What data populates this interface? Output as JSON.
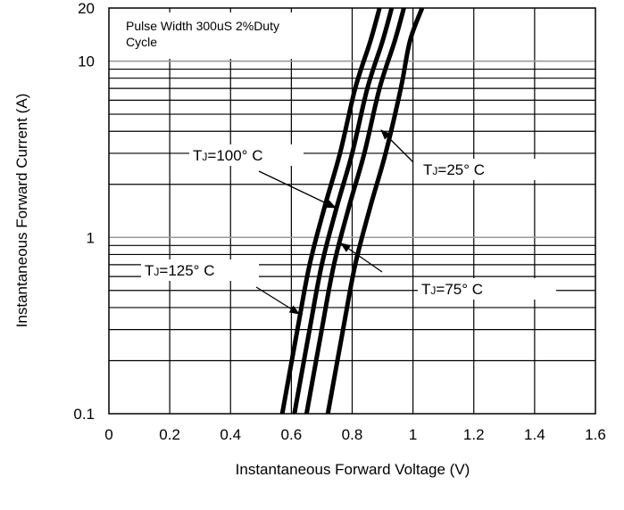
{
  "chart_data": {
    "type": "line",
    "title": "",
    "xlabel": "Instantaneous Forward Voltage (V)",
    "ylabel": "Instantaneous Forward Current (A)",
    "xlim": [
      0,
      1.6
    ],
    "ylim": [
      0.1,
      20
    ],
    "y_scale": "log",
    "x_ticks": [
      "0",
      "0.2",
      "0.4",
      "0.6",
      "0.8",
      "1",
      "1.2",
      "1.4",
      "1.6"
    ],
    "y_ticks": [
      "0.1",
      "1",
      "10",
      "20"
    ],
    "annotation": "Pulse Width 300uS 2%Duty Cycle",
    "grid": true,
    "series": [
      {
        "name": "TJ=125° C",
        "points": [
          [
            0.57,
            0.1
          ],
          [
            0.62,
            0.3
          ],
          [
            0.66,
            0.7
          ],
          [
            0.71,
            1.5
          ],
          [
            0.76,
            3
          ],
          [
            0.81,
            7
          ],
          [
            0.86,
            13
          ],
          [
            0.89,
            20
          ]
        ]
      },
      {
        "name": "TJ=100° C",
        "points": [
          [
            0.61,
            0.1
          ],
          [
            0.66,
            0.3
          ],
          [
            0.7,
            0.7
          ],
          [
            0.75,
            1.5
          ],
          [
            0.8,
            3
          ],
          [
            0.85,
            7
          ],
          [
            0.9,
            13
          ],
          [
            0.93,
            20
          ]
        ]
      },
      {
        "name": "TJ=75° C",
        "points": [
          [
            0.65,
            0.1
          ],
          [
            0.7,
            0.3
          ],
          [
            0.74,
            0.7
          ],
          [
            0.79,
            1.5
          ],
          [
            0.84,
            3
          ],
          [
            0.89,
            7
          ],
          [
            0.94,
            13
          ],
          [
            0.97,
            20
          ]
        ]
      },
      {
        "name": "TJ=25° C",
        "points": [
          [
            0.72,
            0.1
          ],
          [
            0.77,
            0.3
          ],
          [
            0.81,
            0.7
          ],
          [
            0.86,
            1.5
          ],
          [
            0.91,
            3
          ],
          [
            0.96,
            7
          ],
          [
            0.99,
            13
          ],
          [
            1.03,
            20
          ]
        ]
      }
    ],
    "labels": [
      {
        "main": "T",
        "sub": "J",
        "rest": "=125° C"
      },
      {
        "main": "T",
        "sub": "J",
        "rest": "=100° C"
      },
      {
        "main": "T",
        "sub": "J",
        "rest": "=75° C"
      },
      {
        "main": "T",
        "sub": "J",
        "rest": "=25° C"
      }
    ]
  }
}
